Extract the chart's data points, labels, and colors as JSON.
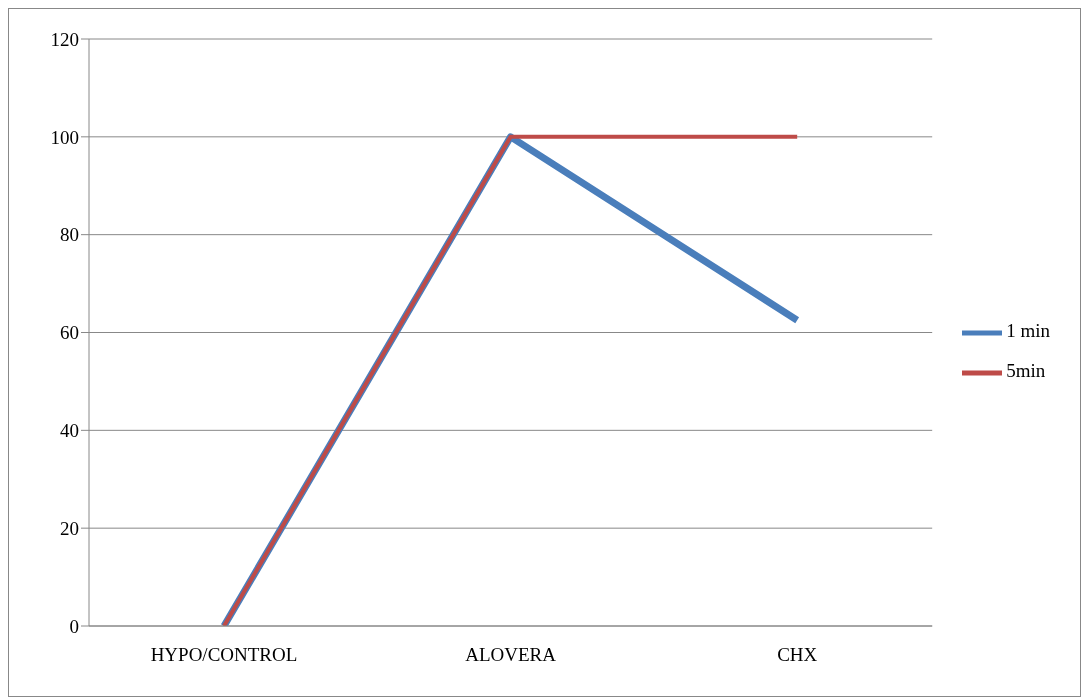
{
  "chart_data": {
    "type": "line",
    "categories": [
      "HYPO/CONTROL",
      "ALOVERA",
      "CHX"
    ],
    "series": [
      {
        "name": "1 min",
        "color": "#4a7ebb",
        "values": [
          0,
          100,
          62.5
        ]
      },
      {
        "name": "5min",
        "color": "#be4b48",
        "values": [
          0,
          100,
          100
        ]
      }
    ],
    "ylim": [
      0,
      120
    ],
    "yticks": [
      0,
      20,
      40,
      60,
      80,
      100,
      120
    ],
    "grid": "y",
    "legend": "right",
    "marker": "none",
    "line_style": "solid"
  }
}
